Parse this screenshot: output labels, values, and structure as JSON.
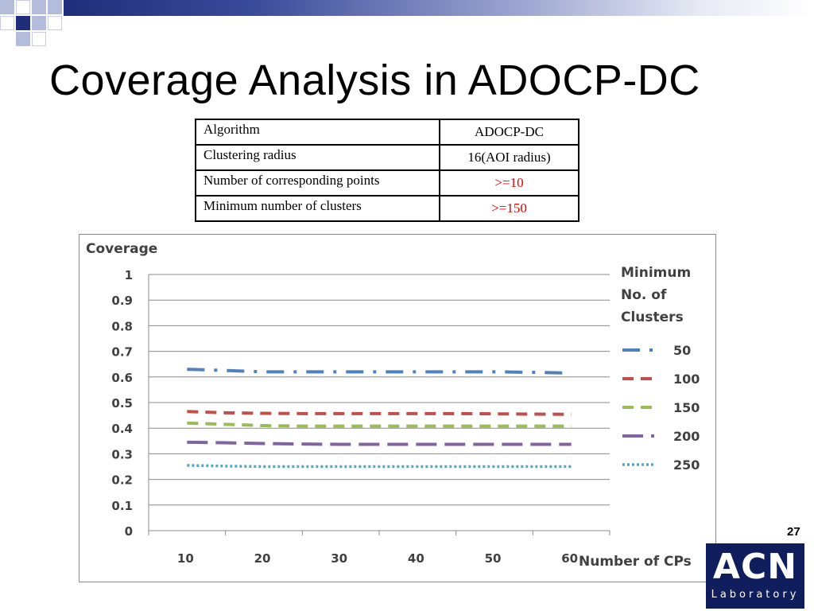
{
  "slide": {
    "title": "Coverage Analysis in ADOCP-DC",
    "page_number": "27",
    "logo_main": "ACN",
    "logo_sub": "Laboratory"
  },
  "params_table": {
    "rows": [
      {
        "label": "Algorithm",
        "value": "ADOCP-DC"
      },
      {
        "label": "Clustering radius",
        "value": "16(AOI radius)"
      },
      {
        "label": "Number of corresponding points",
        "value": ">=10"
      },
      {
        "label": "Minimum number of clusters",
        "value": ">=150"
      }
    ],
    "highlight_color": "#e00000"
  },
  "chart_data": {
    "type": "line",
    "title": "",
    "ylabel": "Coverage",
    "xlabel": "Number of CPs",
    "ylim": [
      0,
      1
    ],
    "y_ticks": [
      "0",
      "0.1",
      "0.2",
      "0.3",
      "0.4",
      "0.5",
      "0.6",
      "0.7",
      "0.8",
      "0.9",
      "1"
    ],
    "x_tick_labels": [
      "10",
      "20",
      "30",
      "40",
      "50",
      "60"
    ],
    "grid": true,
    "legend_title": "Minimum No. of Clusters",
    "legend_placement": "right",
    "x": [
      10,
      15,
      20,
      25,
      30,
      35,
      40,
      45,
      50,
      55,
      60
    ],
    "series": [
      {
        "name": "50",
        "color": "#4f81bd",
        "dash": "dashdot",
        "values": [
          0.63,
          0.625,
          0.62,
          0.62,
          0.62,
          0.62,
          0.62,
          0.62,
          0.62,
          0.618,
          0.615
        ]
      },
      {
        "name": "100",
        "color": "#c0504d",
        "dash": "dash",
        "values": [
          0.465,
          0.46,
          0.458,
          0.457,
          0.457,
          0.457,
          0.457,
          0.457,
          0.456,
          0.455,
          0.454
        ]
      },
      {
        "name": "150",
        "color": "#9bbb59",
        "dash": "dash",
        "values": [
          0.42,
          0.415,
          0.41,
          0.408,
          0.408,
          0.408,
          0.408,
          0.408,
          0.408,
          0.408,
          0.408
        ]
      },
      {
        "name": "200",
        "color": "#8064a2",
        "dash": "longdash",
        "values": [
          0.345,
          0.343,
          0.34,
          0.338,
          0.337,
          0.337,
          0.337,
          0.337,
          0.337,
          0.337,
          0.337
        ]
      },
      {
        "name": "250",
        "color": "#4bacc6",
        "dash": "dot",
        "values": [
          0.255,
          0.252,
          0.25,
          0.25,
          0.25,
          0.25,
          0.25,
          0.25,
          0.25,
          0.25,
          0.25
        ]
      }
    ]
  },
  "colors": {
    "deco_dark": "#1f2d7a",
    "deco_light": "#b4bcdc",
    "logo_bg": "#0f1d5c"
  }
}
